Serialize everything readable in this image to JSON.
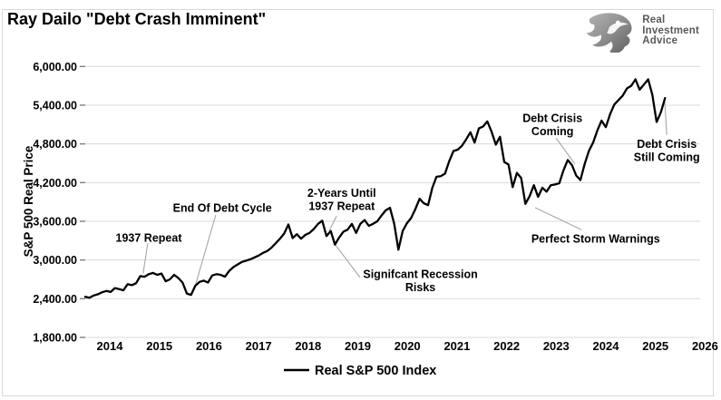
{
  "page": {
    "title": "Ray Dailo \"Debt Crash Imminent\""
  },
  "logo": {
    "icon": "eagle",
    "lines": [
      "Real",
      "Investment",
      "Advice"
    ]
  },
  "colors": {
    "line": "#000000",
    "grid": "#d9d9d9",
    "tick": "#808080",
    "leader": "#a6a6a6",
    "logo_text": "#595959",
    "border": "#d9d9d9"
  },
  "chart_data": {
    "type": "line",
    "title": "Ray Dailo \"Debt Crash Imminent\"",
    "xlabel": "",
    "ylabel": "S&P 500 Real Price",
    "ylim": [
      1800,
      6000
    ],
    "xlim": [
      2014,
      2026
    ],
    "grid": true,
    "legend_position": "bottom",
    "y_ticks": [
      {
        "value": 6000,
        "label": "6,000.00"
      },
      {
        "value": 5400,
        "label": "5,400.00"
      },
      {
        "value": 4800,
        "label": "4,800.00"
      },
      {
        "value": 4200,
        "label": "4,200.00"
      },
      {
        "value": 3600,
        "label": "3,600.00"
      },
      {
        "value": 3000,
        "label": "3,000.00"
      },
      {
        "value": 2400,
        "label": "2,400.00"
      },
      {
        "value": 1800,
        "label": "1,800.00"
      }
    ],
    "x_ticks": [
      {
        "value": 2014,
        "label": "2014"
      },
      {
        "value": 2015,
        "label": "2015"
      },
      {
        "value": 2016,
        "label": "2016"
      },
      {
        "value": 2017,
        "label": "2017"
      },
      {
        "value": 2018,
        "label": "2018"
      },
      {
        "value": 2019,
        "label": "2019"
      },
      {
        "value": 2020,
        "label": "2020"
      },
      {
        "value": 2021,
        "label": "2021"
      },
      {
        "value": 2022,
        "label": "2022"
      },
      {
        "value": 2023,
        "label": "2023"
      },
      {
        "value": 2024,
        "label": "2024"
      },
      {
        "value": 2025,
        "label": "2025"
      },
      {
        "value": 2026,
        "label": "2026"
      }
    ],
    "series": [
      {
        "name": "Real S&P 500 Index",
        "start_year": 2014,
        "start_month": 1,
        "interval": "monthly",
        "values": [
          2430,
          2415,
          2450,
          2470,
          2500,
          2520,
          2505,
          2565,
          2550,
          2530,
          2625,
          2610,
          2640,
          2750,
          2740,
          2780,
          2800,
          2770,
          2790,
          2670,
          2700,
          2770,
          2720,
          2650,
          2480,
          2460,
          2600,
          2660,
          2680,
          2650,
          2760,
          2780,
          2770,
          2740,
          2830,
          2890,
          2930,
          2970,
          2990,
          3010,
          3040,
          3070,
          3110,
          3140,
          3190,
          3260,
          3330,
          3410,
          3550,
          3340,
          3400,
          3330,
          3390,
          3420,
          3480,
          3560,
          3610,
          3370,
          3450,
          3240,
          3350,
          3440,
          3470,
          3560,
          3420,
          3560,
          3620,
          3530,
          3560,
          3600,
          3690,
          3770,
          3810,
          3560,
          3160,
          3450,
          3570,
          3650,
          3790,
          3950,
          3880,
          3850,
          4120,
          4290,
          4300,
          4340,
          4530,
          4690,
          4710,
          4770,
          4870,
          4980,
          4820,
          5040,
          5070,
          5150,
          4990,
          4790,
          4910,
          4520,
          4480,
          4130,
          4350,
          4270,
          3870,
          3990,
          4160,
          3980,
          4120,
          4060,
          4160,
          4170,
          4190,
          4390,
          4550,
          4470,
          4310,
          4240,
          4490,
          4690,
          4820,
          5010,
          5160,
          5060,
          5260,
          5410,
          5480,
          5550,
          5660,
          5700,
          5800,
          5640,
          5720,
          5800,
          5560,
          5140,
          5290,
          5510
        ]
      }
    ],
    "annotations": [
      {
        "id": "repeat-1937",
        "lines": [
          "1937 Repeat"
        ],
        "tx": 2015.25,
        "tv": 3350,
        "leader": [
          [
            2015.23,
            3260
          ],
          [
            2015.14,
            2790
          ]
        ]
      },
      {
        "id": "end-of-debt-cycle",
        "lines": [
          "End Of Debt Cycle"
        ],
        "tx": 2016.7,
        "tv": 3810,
        "leader": [
          [
            2016.57,
            3700
          ],
          [
            2016.14,
            2530
          ]
        ]
      },
      {
        "id": "two-years-until-1937",
        "lines": [
          "2-Years Until",
          "1937 Repeat"
        ],
        "tx": 2019.05,
        "tv": 3940,
        "leader": [
          [
            2018.95,
            3680
          ],
          [
            2018.8,
            3450
          ]
        ]
      },
      {
        "id": "significant-recession-risks",
        "lines": [
          "Signifcant Recession",
          "Risks"
        ],
        "tx": 2020.6,
        "tv": 2680,
        "leader": [
          [
            2018.92,
            3240
          ],
          [
            2019.41,
            2730
          ]
        ]
      },
      {
        "id": "debt-crisis-coming",
        "lines": [
          "Debt Crisis",
          "Coming"
        ],
        "tx": 2023.2,
        "tv": 5100,
        "leader": [
          [
            2023.27,
            4890
          ],
          [
            2023.64,
            4490
          ]
        ]
      },
      {
        "id": "perfect-storm-warnings",
        "lines": [
          "Perfect Storm Warnings"
        ],
        "tx": 2024.05,
        "tv": 3330,
        "leader": [
          [
            2022.86,
            3810
          ],
          [
            2023.77,
            3470
          ]
        ]
      },
      {
        "id": "debt-crisis-still-coming",
        "lines": [
          "Debt Crisis",
          "Still Coming"
        ],
        "tx": 2025.45,
        "tv": 4700,
        "leader": [
          [
            2025.41,
            5460
          ],
          [
            2025.45,
            4940
          ]
        ]
      }
    ]
  }
}
